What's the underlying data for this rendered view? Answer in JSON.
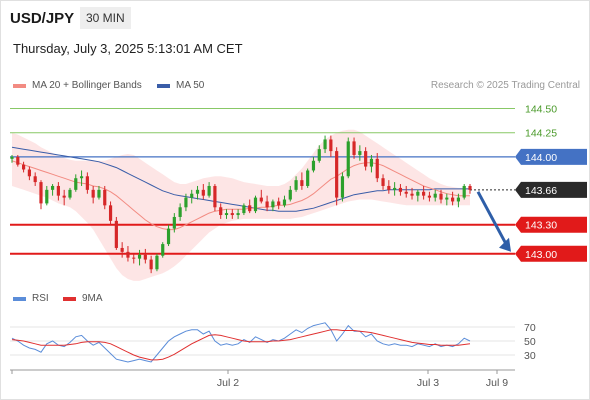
{
  "header": {
    "pair": "USD/JPY",
    "timeframe": "30 MIN",
    "datetime": "Thursday, July 3, 2025 5:13:01 AM CET",
    "credit": "Research © 2025 Trading Central"
  },
  "legend": {
    "ma20": "MA 20 + Bollinger Bands",
    "ma50": "MA 50",
    "rsi": "RSI",
    "ma9": "9MA"
  },
  "colors": {
    "up": "#2ca02c",
    "down": "#d62728",
    "ma50": "#3a5da8",
    "ma20": "#f28b82",
    "band": "#fcdcdc",
    "resistance": "#88c866",
    "support": "#e11a1a",
    "pivot": "#4472c4",
    "arrow": "#2e5ea8",
    "rsi": "#5b8dd9",
    "rsi_ma": "#e03030"
  },
  "chart_data": [
    {
      "type": "candlestick",
      "title": "USD/JPY",
      "x_labels": [
        "Jul 2",
        "Jul 3",
        "Jul 9"
      ],
      "ylim": [
        142.75,
        144.67
      ],
      "levels": [
        {
          "label": "144.50",
          "value": 144.5,
          "kind": "resistance"
        },
        {
          "label": "144.25",
          "value": 144.25,
          "kind": "resistance"
        },
        {
          "label": "144.00",
          "value": 144.0,
          "kind": "pivot"
        },
        {
          "label": "143.66",
          "value": 143.66,
          "kind": "current"
        },
        {
          "label": "143.30",
          "value": 143.3,
          "kind": "support"
        },
        {
          "label": "143.00",
          "value": 143.0,
          "kind": "support"
        }
      ],
      "projection": {
        "from": 143.64,
        "to": 143.0
      },
      "candles": [
        [
          143.98,
          144.02,
          143.94,
          144.0
        ],
        [
          144.0,
          144.02,
          143.9,
          143.92
        ],
        [
          143.92,
          143.95,
          143.84,
          143.87
        ],
        [
          143.87,
          143.9,
          143.76,
          143.8
        ],
        [
          143.8,
          143.84,
          143.7,
          143.74
        ],
        [
          143.74,
          143.76,
          143.46,
          143.52
        ],
        [
          143.52,
          143.7,
          143.5,
          143.66
        ],
        [
          143.66,
          143.72,
          143.6,
          143.7
        ],
        [
          143.7,
          143.74,
          143.55,
          143.6
        ],
        [
          143.6,
          143.66,
          143.5,
          143.58
        ],
        [
          143.58,
          143.68,
          143.56,
          143.66
        ],
        [
          143.66,
          143.82,
          143.64,
          143.78
        ],
        [
          143.78,
          143.86,
          143.7,
          143.8
        ],
        [
          143.8,
          143.84,
          143.62,
          143.66
        ],
        [
          143.66,
          143.7,
          143.52,
          143.58
        ],
        [
          143.58,
          143.7,
          143.56,
          143.66
        ],
        [
          143.66,
          143.7,
          143.46,
          143.5
        ],
        [
          143.5,
          143.54,
          143.3,
          143.34
        ],
        [
          143.34,
          143.38,
          143.04,
          143.06
        ],
        [
          143.06,
          143.12,
          142.96,
          143.02
        ],
        [
          143.02,
          143.08,
          142.92,
          142.96
        ],
        [
          142.96,
          143.0,
          142.9,
          142.95
        ],
        [
          142.95,
          143.04,
          142.88,
          142.99
        ],
        [
          142.99,
          143.05,
          142.9,
          142.94
        ],
        [
          142.94,
          142.98,
          142.8,
          142.84
        ],
        [
          142.84,
          143.0,
          142.82,
          142.98
        ],
        [
          142.98,
          143.12,
          142.96,
          143.1
        ],
        [
          143.1,
          143.3,
          143.08,
          143.26
        ],
        [
          143.26,
          143.42,
          143.22,
          143.38
        ],
        [
          143.38,
          143.52,
          143.34,
          143.48
        ],
        [
          143.48,
          143.62,
          143.44,
          143.58
        ],
        [
          143.58,
          143.66,
          143.52,
          143.62
        ],
        [
          143.62,
          143.7,
          143.56,
          143.66
        ],
        [
          143.66,
          143.72,
          143.56,
          143.6
        ],
        [
          143.6,
          143.74,
          143.58,
          143.7
        ],
        [
          143.7,
          143.72,
          143.44,
          143.48
        ],
        [
          143.48,
          143.52,
          143.36,
          143.4
        ],
        [
          143.4,
          143.46,
          143.36,
          143.42
        ],
        [
          143.42,
          143.46,
          143.36,
          143.4
        ],
        [
          143.4,
          143.46,
          143.36,
          143.42
        ],
        [
          143.42,
          143.52,
          143.4,
          143.5
        ],
        [
          143.5,
          143.56,
          143.42,
          143.44
        ],
        [
          143.44,
          143.6,
          143.42,
          143.58
        ],
        [
          143.58,
          143.66,
          143.52,
          143.54
        ],
        [
          143.54,
          143.6,
          143.44,
          143.48
        ],
        [
          143.48,
          143.56,
          143.44,
          143.54
        ],
        [
          143.54,
          143.58,
          143.46,
          143.5
        ],
        [
          143.5,
          143.6,
          143.48,
          143.56
        ],
        [
          143.56,
          143.7,
          143.54,
          143.66
        ],
        [
          143.66,
          143.8,
          143.64,
          143.76
        ],
        [
          143.76,
          143.84,
          143.66,
          143.7
        ],
        [
          143.7,
          143.88,
          143.68,
          143.86
        ],
        [
          143.86,
          144.0,
          143.84,
          143.96
        ],
        [
          143.96,
          144.12,
          143.94,
          144.08
        ],
        [
          144.08,
          144.22,
          144.04,
          144.18
        ],
        [
          144.18,
          144.22,
          144.0,
          144.06
        ],
        [
          144.06,
          144.1,
          143.5,
          143.58
        ],
        [
          143.58,
          143.84,
          143.54,
          143.8
        ],
        [
          143.8,
          144.2,
          143.78,
          144.16
        ],
        [
          144.16,
          144.2,
          143.98,
          144.02
        ],
        [
          144.02,
          144.12,
          143.96,
          144.06
        ],
        [
          144.06,
          144.1,
          143.86,
          143.9
        ],
        [
          143.9,
          144.02,
          143.84,
          143.98
        ],
        [
          143.98,
          144.04,
          143.74,
          143.78
        ],
        [
          143.78,
          143.82,
          143.66,
          143.7
        ],
        [
          143.7,
          143.76,
          143.62,
          143.66
        ],
        [
          143.66,
          143.74,
          143.6,
          143.68
        ],
        [
          143.68,
          143.72,
          143.6,
          143.64
        ],
        [
          143.64,
          143.7,
          143.58,
          143.62
        ],
        [
          143.62,
          143.68,
          143.56,
          143.6
        ],
        [
          143.6,
          143.66,
          143.54,
          143.64
        ],
        [
          143.64,
          143.7,
          143.56,
          143.6
        ],
        [
          143.6,
          143.64,
          143.54,
          143.58
        ],
        [
          143.58,
          143.66,
          143.54,
          143.62
        ],
        [
          143.62,
          143.66,
          143.52,
          143.56
        ],
        [
          143.56,
          143.62,
          143.5,
          143.58
        ],
        [
          143.58,
          143.64,
          143.5,
          143.54
        ],
        [
          143.54,
          143.62,
          143.48,
          143.58
        ],
        [
          143.58,
          143.72,
          143.56,
          143.7
        ],
        [
          143.7,
          143.72,
          143.62,
          143.66
        ]
      ],
      "ma20": [
        143.96,
        143.94,
        143.92,
        143.9,
        143.88,
        143.86,
        143.84,
        143.82,
        143.8,
        143.78,
        143.76,
        143.74,
        143.73,
        143.72,
        143.7,
        143.69,
        143.67,
        143.64,
        143.6,
        143.55,
        143.5,
        143.45,
        143.4,
        143.35,
        143.31,
        143.28,
        143.26,
        143.25,
        143.25,
        143.27,
        143.3,
        143.33,
        143.36,
        143.39,
        143.42,
        143.44,
        143.45,
        143.46,
        143.46,
        143.46,
        143.46,
        143.47,
        143.47,
        143.48,
        143.48,
        143.49,
        143.5,
        143.5,
        143.51,
        143.53,
        143.55,
        143.58,
        143.62,
        143.67,
        143.72,
        143.77,
        143.8,
        143.84,
        143.88,
        143.91,
        143.93,
        143.94,
        143.94,
        143.93,
        143.91,
        143.88,
        143.85,
        143.82,
        143.79,
        143.76,
        143.73,
        143.7,
        143.68,
        143.66,
        143.64,
        143.62,
        143.61,
        143.6,
        143.6,
        143.6
      ],
      "ma50": [
        144.1,
        144.09,
        144.08,
        144.07,
        144.06,
        144.05,
        144.04,
        144.03,
        144.02,
        144.01,
        144.0,
        143.99,
        143.98,
        143.97,
        143.96,
        143.95,
        143.93,
        143.91,
        143.89,
        143.86,
        143.83,
        143.8,
        143.77,
        143.74,
        143.71,
        143.68,
        143.65,
        143.63,
        143.61,
        143.6,
        143.59,
        143.58,
        143.57,
        143.56,
        143.55,
        143.54,
        143.53,
        143.52,
        143.51,
        143.5,
        143.49,
        143.48,
        143.47,
        143.46,
        143.45,
        143.45,
        143.44,
        143.44,
        143.44,
        143.44,
        143.45,
        143.46,
        143.47,
        143.49,
        143.51,
        143.53,
        143.55,
        143.57,
        143.59,
        143.61,
        143.62,
        143.63,
        143.64,
        143.65,
        143.65,
        143.66,
        143.66,
        143.66,
        143.66,
        143.66,
        143.66,
        143.66,
        143.66,
        143.67,
        143.67,
        143.67,
        143.67,
        143.67,
        143.67,
        143.67
      ],
      "band_upper": [
        144.25,
        144.23,
        144.2,
        144.17,
        144.14,
        144.1,
        144.07,
        144.04,
        144.01,
        143.99,
        143.97,
        143.96,
        143.96,
        143.96,
        143.96,
        143.96,
        143.96,
        143.98,
        144.0,
        144.02,
        144.03,
        144.02,
        143.98,
        143.94,
        143.9,
        143.86,
        143.82,
        143.78,
        143.74,
        143.72,
        143.72,
        143.74,
        143.76,
        143.78,
        143.79,
        143.8,
        143.8,
        143.79,
        143.78,
        143.76,
        143.74,
        143.73,
        143.72,
        143.71,
        143.7,
        143.7,
        143.7,
        143.72,
        143.76,
        143.82,
        143.88,
        143.96,
        144.04,
        144.12,
        144.18,
        144.22,
        144.25,
        144.27,
        144.28,
        144.28,
        144.26,
        144.22,
        144.18,
        144.14,
        144.1,
        144.06,
        144.02,
        143.98,
        143.94,
        143.9,
        143.86,
        143.82,
        143.78,
        143.75,
        143.72,
        143.7,
        143.69,
        143.68,
        143.68,
        143.68
      ],
      "band_lower": [
        143.7,
        143.68,
        143.66,
        143.64,
        143.62,
        143.6,
        143.58,
        143.55,
        143.52,
        143.5,
        143.48,
        143.44,
        143.38,
        143.32,
        143.25,
        143.15,
        143.05,
        142.95,
        142.85,
        142.78,
        142.74,
        142.72,
        142.72,
        142.74,
        142.76,
        142.78,
        142.8,
        142.83,
        142.87,
        142.92,
        142.98,
        143.04,
        143.1,
        143.16,
        143.22,
        143.26,
        143.3,
        143.32,
        143.34,
        143.35,
        143.36,
        143.36,
        143.36,
        143.36,
        143.36,
        143.36,
        143.36,
        143.36,
        143.36,
        143.37,
        143.38,
        143.4,
        143.42,
        143.44,
        143.46,
        143.48,
        143.5,
        143.52,
        143.54,
        143.55,
        143.56,
        143.56,
        143.56,
        143.55,
        143.54,
        143.53,
        143.52,
        143.51,
        143.5,
        143.5,
        143.5,
        143.5,
        143.5,
        143.5,
        143.5,
        143.5,
        143.5,
        143.5,
        143.5,
        143.5
      ]
    },
    {
      "type": "line",
      "title": "RSI",
      "ylim": [
        20,
        80
      ],
      "y_ticks": [
        {
          "label": "70",
          "value": 70
        },
        {
          "label": "50",
          "value": 50
        },
        {
          "label": "30",
          "value": 30
        }
      ],
      "series": [
        {
          "name": "RSI",
          "values": [
            54,
            50,
            44,
            40,
            38,
            34,
            46,
            50,
            44,
            42,
            48,
            56,
            58,
            50,
            44,
            48,
            40,
            32,
            24,
            22,
            20,
            22,
            24,
            22,
            20,
            30,
            40,
            50,
            56,
            60,
            64,
            66,
            66,
            60,
            64,
            50,
            44,
            46,
            44,
            46,
            52,
            48,
            56,
            52,
            48,
            52,
            50,
            54,
            60,
            66,
            62,
            68,
            72,
            74,
            76,
            66,
            50,
            60,
            72,
            64,
            64,
            56,
            60,
            50,
            46,
            44,
            46,
            44,
            44,
            42,
            46,
            44,
            42,
            46,
            42,
            44,
            42,
            46,
            54,
            50
          ]
        },
        {
          "name": "9MA",
          "values": [
            52,
            51,
            50,
            48,
            46,
            44,
            44,
            44,
            44,
            44,
            45,
            46,
            48,
            49,
            49,
            49,
            48,
            46,
            42,
            38,
            34,
            30,
            27,
            25,
            23,
            23,
            24,
            27,
            31,
            36,
            41,
            46,
            50,
            54,
            58,
            59,
            58,
            56,
            54,
            52,
            50,
            49,
            49,
            49,
            49,
            50,
            50,
            51,
            52,
            54,
            56,
            58,
            60,
            62,
            64,
            66,
            66,
            65,
            65,
            65,
            64,
            63,
            62,
            60,
            58,
            56,
            54,
            52,
            50,
            48,
            47,
            46,
            45,
            45,
            44,
            44,
            44,
            44,
            45,
            46
          ]
        }
      ]
    }
  ]
}
